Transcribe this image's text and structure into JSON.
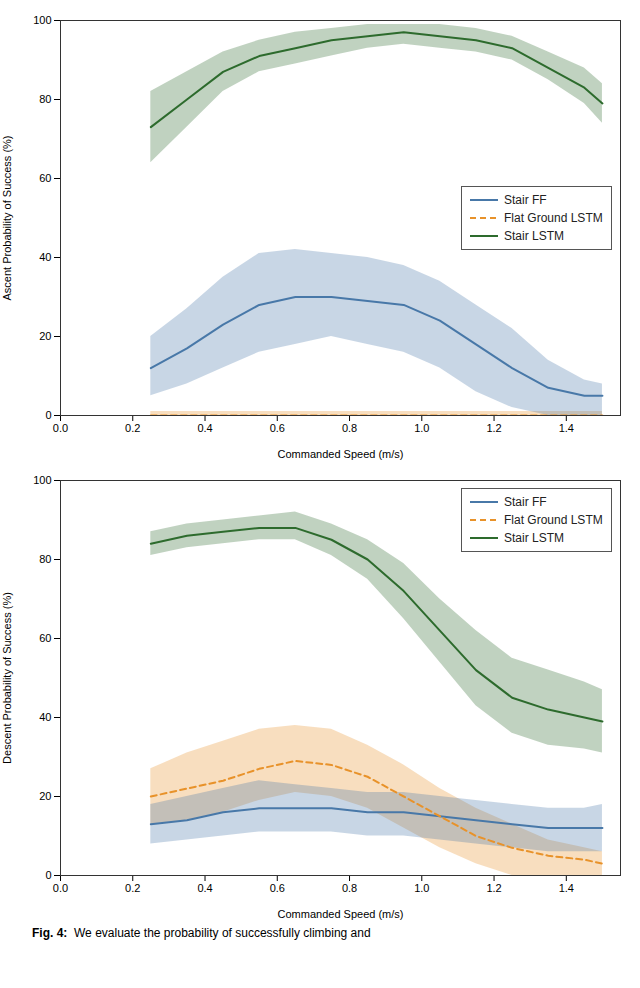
{
  "chart_data": [
    {
      "type": "line",
      "xlabel": "Commanded Speed (m/s)",
      "ylabel": "Ascent Probability of Success (%)",
      "x": [
        0.25,
        0.35,
        0.45,
        0.55,
        0.65,
        0.75,
        0.85,
        0.95,
        1.05,
        1.15,
        1.25,
        1.35,
        1.45,
        1.5
      ],
      "series": [
        {
          "name": "Stair FF",
          "color": "#4878a8",
          "line_style": "solid",
          "values": [
            12,
            17,
            23,
            28,
            30,
            30,
            29,
            28,
            24,
            18,
            12,
            7,
            5,
            5
          ],
          "lo": [
            5,
            8,
            12,
            16,
            18,
            20,
            18,
            16,
            12,
            6,
            2,
            0,
            0,
            0
          ],
          "hi": [
            20,
            27,
            35,
            41,
            42,
            41,
            40,
            38,
            34,
            28,
            22,
            14,
            9,
            8
          ]
        },
        {
          "name": "Flat Ground LSTM",
          "color": "#e8922a",
          "line_style": "dashed",
          "values": [
            0,
            0,
            0,
            0,
            0,
            0,
            0,
            0,
            0,
            0,
            0,
            0,
            0,
            0
          ],
          "lo": [
            0,
            0,
            0,
            0,
            0,
            0,
            0,
            0,
            0,
            0,
            0,
            0,
            0,
            0
          ],
          "hi": [
            1,
            1,
            1,
            1,
            1,
            1,
            1,
            1,
            1,
            1,
            1,
            1,
            1,
            1
          ]
        },
        {
          "name": "Stair LSTM",
          "color": "#2d6b2d",
          "line_style": "solid",
          "values": [
            73,
            80,
            87,
            91,
            93,
            95,
            96,
            97,
            96,
            95,
            93,
            88,
            83,
            79
          ],
          "lo": [
            64,
            73,
            82,
            87,
            89,
            91,
            93,
            94,
            93,
            92,
            90,
            85,
            79,
            74
          ],
          "hi": [
            82,
            87,
            92,
            95,
            97,
            98,
            99,
            99,
            99,
            98,
            96,
            92,
            88,
            84
          ]
        }
      ],
      "xlim": [
        0.0,
        1.55
      ],
      "xticks": [
        {
          "value": 0,
          "label": "0.0"
        },
        0.2,
        0.4,
        0.6,
        0.8,
        {
          "value": 1,
          "label": "1.0"
        },
        1.2,
        1.4
      ],
      "ylim": [
        0,
        100
      ],
      "yticks": [
        0,
        20,
        40,
        60,
        80,
        100
      ],
      "grid": false,
      "legend": "center right"
    },
    {
      "type": "line",
      "xlabel": "Commanded Speed (m/s)",
      "ylabel": "Descent Probability of Success (%)",
      "x": [
        0.25,
        0.35,
        0.45,
        0.55,
        0.65,
        0.75,
        0.85,
        0.95,
        1.05,
        1.15,
        1.25,
        1.35,
        1.45,
        1.5
      ],
      "series": [
        {
          "name": "Stair FF",
          "color": "#4878a8",
          "line_style": "solid",
          "values": [
            13,
            14,
            16,
            17,
            17,
            17,
            16,
            16,
            15,
            14,
            13,
            12,
            12,
            12
          ],
          "lo": [
            8,
            9,
            10,
            11,
            11,
            11,
            10,
            10,
            9,
            8,
            7,
            6,
            6,
            6
          ],
          "hi": [
            18,
            20,
            22,
            24,
            23,
            22,
            21,
            21,
            20,
            19,
            18,
            17,
            17,
            18
          ]
        },
        {
          "name": "Flat Ground LSTM",
          "color": "#e8922a",
          "line_style": "dashed",
          "values": [
            20,
            22,
            24,
            27,
            29,
            28,
            25,
            20,
            15,
            10,
            7,
            5,
            4,
            3
          ],
          "lo": [
            13,
            14,
            16,
            19,
            21,
            20,
            17,
            12,
            7,
            3,
            0,
            0,
            0,
            0
          ],
          "hi": [
            27,
            31,
            34,
            37,
            38,
            37,
            33,
            28,
            22,
            17,
            13,
            9,
            7,
            6
          ]
        },
        {
          "name": "Stair LSTM",
          "color": "#2d6b2d",
          "line_style": "solid",
          "values": [
            84,
            86,
            87,
            88,
            88,
            85,
            80,
            72,
            62,
            52,
            45,
            42,
            40,
            39
          ],
          "lo": [
            81,
            83,
            84,
            85,
            85,
            81,
            75,
            65,
            54,
            43,
            36,
            33,
            32,
            31
          ],
          "hi": [
            87,
            89,
            90,
            91,
            92,
            89,
            85,
            79,
            70,
            62,
            55,
            52,
            49,
            47
          ]
        }
      ],
      "xlim": [
        0.0,
        1.55
      ],
      "xticks": [
        {
          "value": 0,
          "label": "0.0"
        },
        0.2,
        0.4,
        0.6,
        0.8,
        {
          "value": 1,
          "label": "1.0"
        },
        1.2,
        1.4
      ],
      "ylim": [
        0,
        100
      ],
      "yticks": [
        0,
        20,
        40,
        60,
        80,
        100
      ],
      "grid": false,
      "legend": "upper right"
    }
  ],
  "caption": "Fig. 4:  We evaluate the probability of successfully climbing and"
}
